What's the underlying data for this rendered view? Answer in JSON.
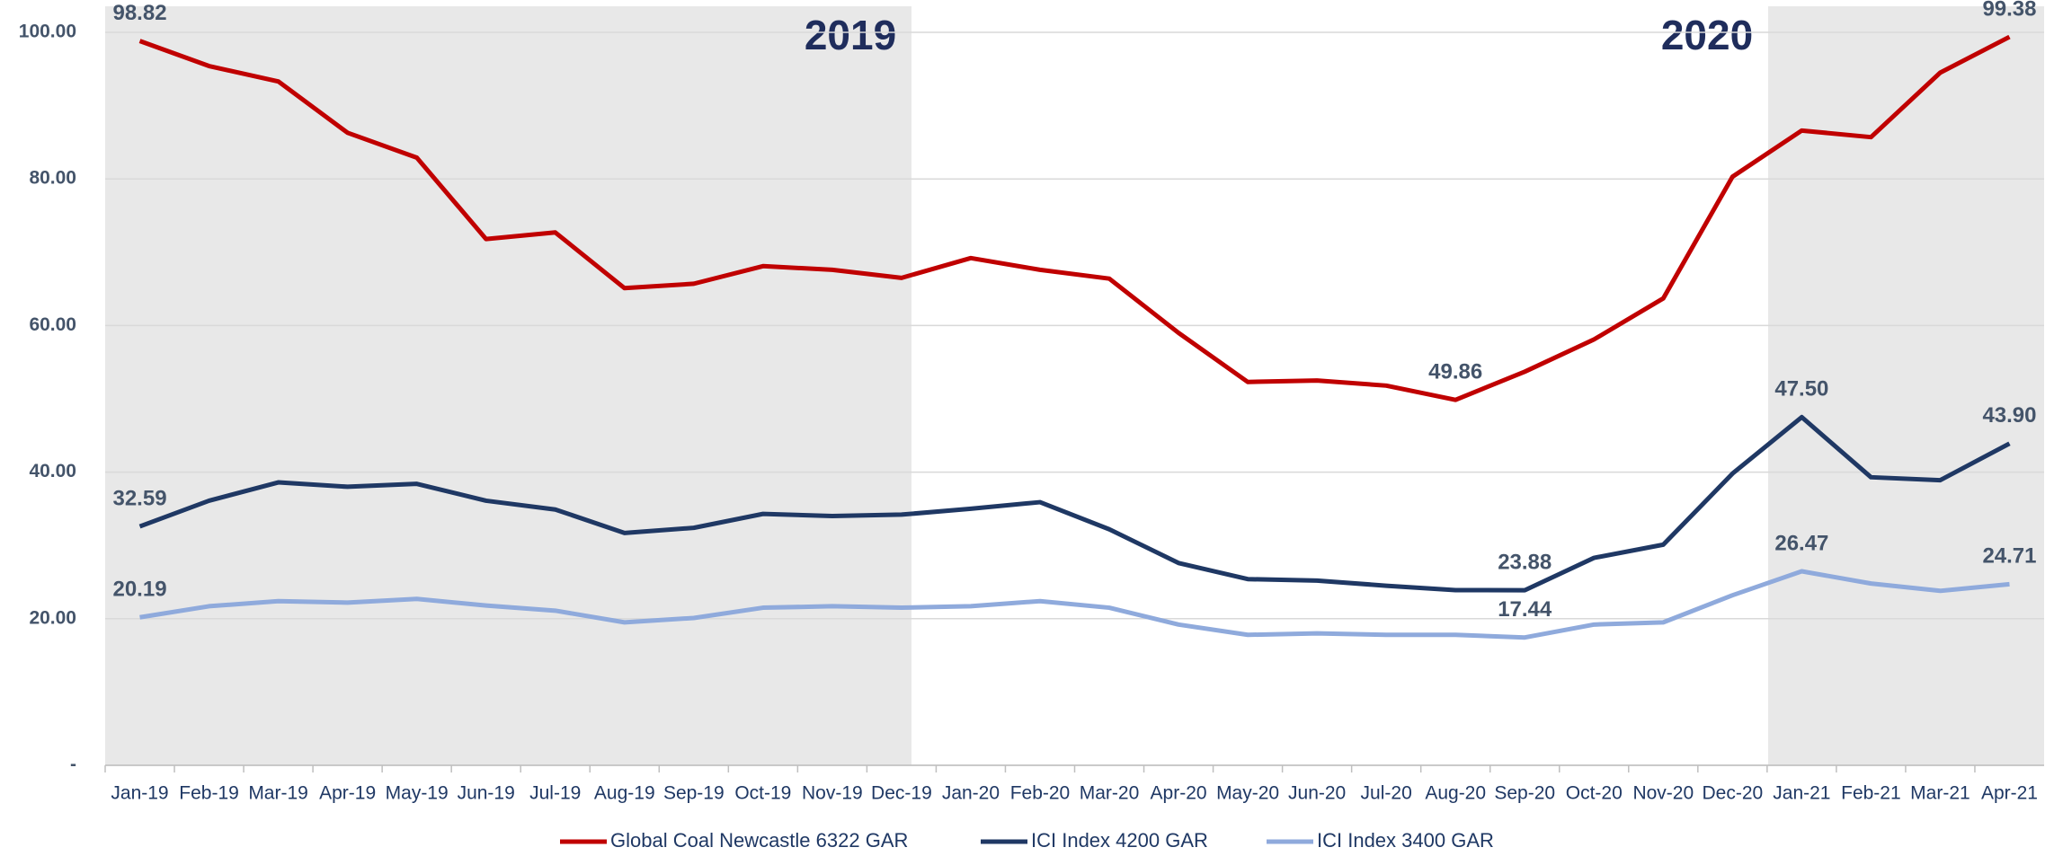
{
  "chart_data": {
    "type": "line",
    "annotations": [
      "2019",
      "2020"
    ],
    "categories": [
      "Jan-19",
      "Feb-19",
      "Mar-19",
      "Apr-19",
      "May-19",
      "Jun-19",
      "Jul-19",
      "Aug-19",
      "Sep-19",
      "Oct-19",
      "Nov-19",
      "Dec-19",
      "Jan-20",
      "Feb-20",
      "Mar-20",
      "Apr-20",
      "May-20",
      "Jun-20",
      "Jul-20",
      "Aug-20",
      "Sep-20",
      "Oct-20",
      "Nov-20",
      "Dec-20",
      "Jan-21",
      "Feb-21",
      "Mar-21",
      "Apr-21"
    ],
    "series": [
      {
        "name": "Global Coal Newcastle 6322 GAR",
        "color": "#c00000",
        "values": [
          98.82,
          95.4,
          93.3,
          86.3,
          82.9,
          71.8,
          72.7,
          65.1,
          65.7,
          68.1,
          67.6,
          66.5,
          69.2,
          67.6,
          66.4,
          59.0,
          52.3,
          52.5,
          51.8,
          49.86,
          53.7,
          58.1,
          63.7,
          80.3,
          86.6,
          85.7,
          94.5,
          99.38
        ],
        "value_labels": [
          "98.82",
          null,
          null,
          null,
          null,
          null,
          null,
          null,
          null,
          null,
          null,
          null,
          null,
          null,
          null,
          null,
          null,
          null,
          null,
          "49.86",
          null,
          null,
          null,
          null,
          null,
          null,
          null,
          "99.38"
        ]
      },
      {
        "name": "ICI Index 4200 GAR",
        "color": "#1f3864",
        "values": [
          32.59,
          36.1,
          38.6,
          38.0,
          38.4,
          36.1,
          34.9,
          31.7,
          32.4,
          34.3,
          34.0,
          34.2,
          35.0,
          35.9,
          32.2,
          27.6,
          25.4,
          25.2,
          24.5,
          23.9,
          23.88,
          28.3,
          30.1,
          39.8,
          47.5,
          39.3,
          38.9,
          43.9
        ],
        "value_labels": [
          "32.59",
          null,
          null,
          null,
          null,
          null,
          null,
          null,
          null,
          null,
          null,
          null,
          null,
          null,
          null,
          null,
          null,
          null,
          null,
          null,
          "23.88",
          null,
          null,
          null,
          "47.50",
          null,
          null,
          "43.90"
        ]
      },
      {
        "name": "ICI Index 3400 GAR",
        "color": "#8faadc",
        "values": [
          20.19,
          21.7,
          22.4,
          22.2,
          22.7,
          21.8,
          21.1,
          19.5,
          20.1,
          21.5,
          21.7,
          21.5,
          21.7,
          22.4,
          21.5,
          19.2,
          17.8,
          18.0,
          17.8,
          17.8,
          17.44,
          19.2,
          19.5,
          23.2,
          26.47,
          24.8,
          23.8,
          24.71
        ],
        "value_labels": [
          "20.19",
          null,
          null,
          null,
          null,
          null,
          null,
          null,
          null,
          null,
          null,
          null,
          null,
          null,
          null,
          null,
          null,
          null,
          null,
          null,
          "17.44",
          null,
          null,
          null,
          "26.47",
          null,
          null,
          "24.71"
        ]
      }
    ],
    "ylim": [
      0,
      100
    ],
    "yticks": [
      {
        "value": 0,
        "label": "-"
      },
      {
        "value": 20,
        "label": "20.00"
      },
      {
        "value": 40,
        "label": "40.00"
      },
      {
        "value": 60,
        "label": "60.00"
      },
      {
        "value": 80,
        "label": "80.00"
      },
      {
        "value": 100,
        "label": "100.00"
      }
    ],
    "grid": true,
    "legend": "bottom"
  }
}
